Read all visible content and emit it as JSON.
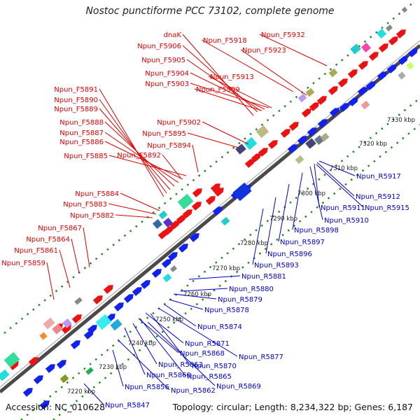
{
  "title": "Nostoc punctiforme PCC 73102, complete genome",
  "footer": {
    "accession": "Accession: NC_010628",
    "summary": "Topology: circular; Length: 8,234,322 bp; Genes: 6,187"
  },
  "colors": {
    "forward_label": "#dd0000",
    "reverse_label": "#0000cc",
    "axis": "#555555",
    "dots": "#228822"
  },
  "scale": {
    "unit": "kbp",
    "ticks": [
      7220,
      7230,
      7240,
      7250,
      7260,
      7270,
      7280,
      7290,
      7300,
      7310,
      7320,
      7330
    ]
  },
  "forward_genes": [
    "dnaK",
    "Npun_F5906",
    "Npun_F5905",
    "Npun_F5904",
    "Npun_F5903",
    "Npun_F5918",
    "Npun_F5913",
    "Npun_F5909",
    "Npun_F5932",
    "Npun_F5923",
    "Npun_F5891",
    "Npun_F5890",
    "Npun_F5889",
    "Npun_F5888",
    "Npun_F5887",
    "Npun_F5886",
    "Npun_F5885",
    "Npun_F5902",
    "Npun_F5895",
    "Npun_F5894",
    "Npun_F5892",
    "Npun_F5884",
    "Npun_F5883",
    "Npun_F5882",
    "Npun_F5867",
    "Npun_F5864",
    "Npun_F5861",
    "Npun_F5859"
  ],
  "reverse_genes": [
    "Npun_R5917",
    "Npun_R5912",
    "Npun_R5911",
    "Npun_R5915",
    "Npun_R5910",
    "Npun_R5898",
    "Npun_R5897",
    "Npun_R5896",
    "Npun_R5893",
    "Npun_R5881",
    "Npun_R5880",
    "Npun_R5879",
    "Npun_R5878",
    "Npun_R5874",
    "Npun_R5871",
    "Npun_R5877",
    "Npun_R5868",
    "Npun_R5870",
    "Npun_R5863",
    "Npun_R5865",
    "Npun_R5860",
    "Npun_R5869",
    "Npun_R5856",
    "Npun_R5862",
    "Npun_R5847"
  ]
}
